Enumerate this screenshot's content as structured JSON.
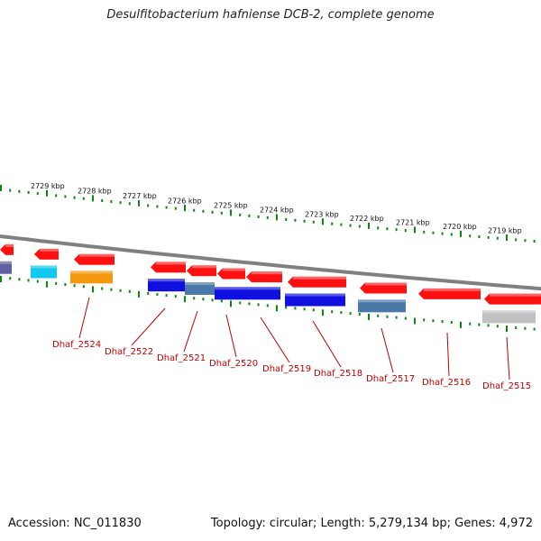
{
  "header": {
    "title": "Desulfitobacterium hafniense DCB-2, complete genome"
  },
  "footer": {
    "accession": "Accession: NC_011830",
    "summary": "Topology: circular; Length: 5,279,134 bp; Genes: 4,972"
  },
  "colors": {
    "forward_gene": "#ff1010",
    "reverse_blue": "#1010e0",
    "reverse_steel": "#4a78a8",
    "cyan": "#10c8f0",
    "orange": "#f59a10",
    "grey": "#c0c0c0",
    "backbone": "#808080",
    "tick": "#0a8a0a",
    "label": "#c00000"
  },
  "scale": {
    "kbp_labels": [
      "2729 kbp",
      "2728 kbp",
      "2727 kbp",
      "2726 kbp",
      "2725 kbp",
      "2724 kbp",
      "2723 kbp",
      "2722 kbp",
      "2721 kbp",
      "2720 kbp",
      "2719 kbp"
    ]
  },
  "genes": {
    "labels": [
      "Dhaf_2524",
      "Dhaf_2522",
      "Dhaf_2521",
      "Dhaf_2520",
      "Dhaf_2519",
      "Dhaf_2518",
      "Dhaf_2517",
      "Dhaf_2516",
      "Dhaf_2515"
    ]
  }
}
